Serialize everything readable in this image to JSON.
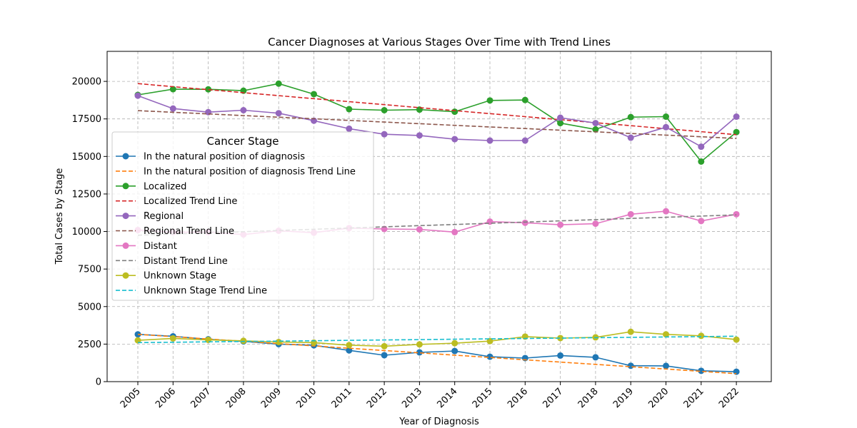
{
  "chart_data": {
    "type": "line",
    "title": "Cancer Diagnoses at Various Stages Over Time with Trend Lines",
    "xlabel": "Year of Diagnosis",
    "ylabel": "Total Cases by Stage",
    "legend_title": "Cancer Stage",
    "legend_position": "center-left",
    "grid": true,
    "ylim": [
      0,
      22000
    ],
    "yticks": [
      0,
      2500,
      5000,
      7500,
      10000,
      12500,
      15000,
      17500,
      20000
    ],
    "x": [
      2005,
      2006,
      2007,
      2008,
      2009,
      2010,
      2011,
      2012,
      2013,
      2014,
      2015,
      2016,
      2017,
      2018,
      2019,
      2020,
      2021,
      2022
    ],
    "series": [
      {
        "name": "In the natural position of diagnosis",
        "color": "#1f77b4",
        "style": "solid",
        "marker": true,
        "values": [
          3150,
          3020,
          2820,
          2680,
          2500,
          2420,
          2080,
          1760,
          1950,
          2040,
          1660,
          1570,
          1740,
          1620,
          1060,
          1050,
          720,
          660
        ]
      },
      {
        "name": "In the natural position of diagnosis Trend Line",
        "color": "#ff7f0e",
        "style": "dashed",
        "marker": false,
        "values": [
          3150,
          2996,
          2842,
          2688,
          2534,
          2380,
          2226,
          2072,
          1918,
          1764,
          1610,
          1456,
          1302,
          1148,
          994,
          840,
          686,
          532
        ]
      },
      {
        "name": "Localized",
        "color": "#2ca02c",
        "style": "solid",
        "marker": true,
        "values": [
          19100,
          19480,
          19470,
          19380,
          19850,
          19150,
          18150,
          18080,
          18120,
          17980,
          18730,
          18760,
          17220,
          16800,
          17620,
          17650,
          14660,
          16620
        ]
      },
      {
        "name": "Localized Trend Line",
        "color": "#d62728",
        "style": "dashed",
        "marker": false,
        "values": [
          19850,
          19650,
          19450,
          19250,
          19050,
          18850,
          18650,
          18450,
          18250,
          18050,
          17850,
          17650,
          17450,
          17250,
          17050,
          16850,
          16650,
          16450
        ]
      },
      {
        "name": "Regional",
        "color": "#9467bd",
        "style": "solid",
        "marker": true,
        "values": [
          19050,
          18190,
          17950,
          18080,
          17880,
          17380,
          16850,
          16480,
          16400,
          16150,
          16060,
          16060,
          17580,
          17220,
          16250,
          16950,
          15650,
          17650
        ]
      },
      {
        "name": "Regional Trend Line",
        "color": "#8c564b",
        "style": "dashed",
        "marker": false,
        "values": [
          18050,
          17942,
          17833,
          17725,
          17616,
          17508,
          17399,
          17291,
          17182,
          17074,
          16965,
          16857,
          16748,
          16640,
          16531,
          16423,
          16314,
          16200
        ]
      },
      {
        "name": "Distant",
        "color": "#e377c2",
        "style": "solid",
        "marker": true,
        "values": [
          10100,
          9950,
          9960,
          9800,
          10050,
          9920,
          10230,
          10170,
          10140,
          9960,
          10660,
          10580,
          10450,
          10520,
          11150,
          11350,
          10700,
          11150
        ]
      },
      {
        "name": "Distant Trend Line",
        "color": "#7f7f7f",
        "style": "dashed",
        "marker": false,
        "values": [
          9750,
          9830,
          9910,
          9990,
          10070,
          10150,
          10230,
          10310,
          10390,
          10470,
          10550,
          10630,
          10710,
          10790,
          10870,
          10950,
          11030,
          11110
        ]
      },
      {
        "name": "Unknown Stage",
        "color": "#bcbd22",
        "style": "solid",
        "marker": true,
        "values": [
          2750,
          2880,
          2780,
          2720,
          2640,
          2600,
          2430,
          2360,
          2480,
          2560,
          2700,
          3000,
          2900,
          2950,
          3320,
          3150,
          3050,
          2800
        ]
      },
      {
        "name": "Unknown Stage Trend Line",
        "color": "#17becf",
        "style": "dashed",
        "marker": false,
        "values": [
          2600,
          2625,
          2650,
          2675,
          2700,
          2725,
          2750,
          2775,
          2800,
          2825,
          2850,
          2875,
          2900,
          2925,
          2950,
          2975,
          3000,
          3025
        ]
      }
    ]
  }
}
